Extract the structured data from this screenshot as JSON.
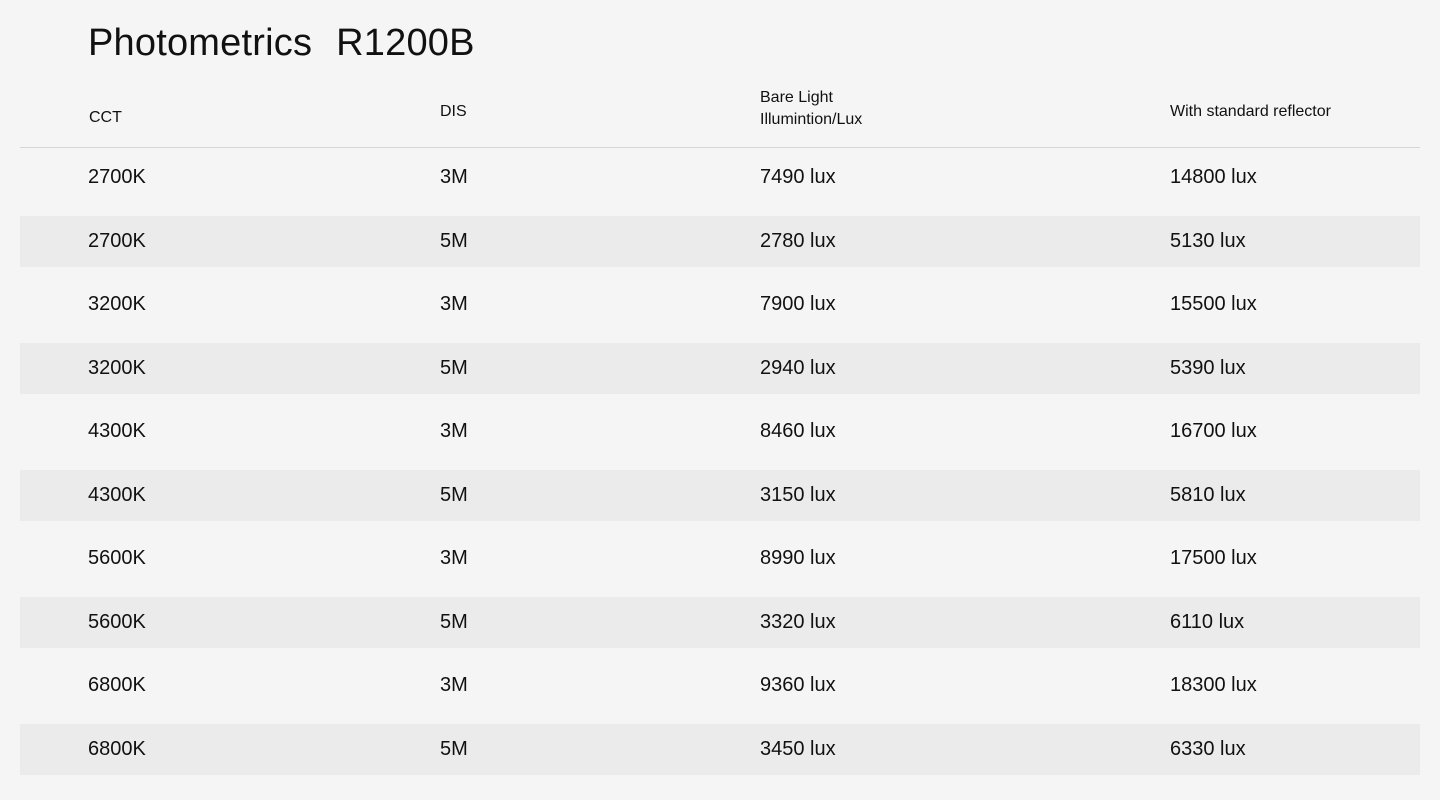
{
  "title": {
    "main": "Photometrics",
    "model": "R1200B"
  },
  "headers": [
    {
      "line1": "CCT",
      "line2": ""
    },
    {
      "line1": "DIS",
      "line2": ""
    },
    {
      "line1": "Bare Light",
      "line2": "Illumintion/Lux"
    },
    {
      "line1": "With standard reflector",
      "line2": ""
    }
  ],
  "rows": [
    [
      "2700K",
      "3M",
      "7490 lux",
      "14800 lux"
    ],
    [
      "2700K",
      "5M",
      "2780 lux",
      "5130 lux"
    ],
    [
      "3200K",
      "3M",
      "7900 lux",
      "15500 lux"
    ],
    [
      "3200K",
      "5M",
      "2940 lux",
      "5390 lux"
    ],
    [
      "4300K",
      "3M",
      "8460 lux",
      "16700 lux"
    ],
    [
      "4300K",
      "5M",
      "3150 lux",
      "5810 lux"
    ],
    [
      "5600K",
      "3M",
      "8990 lux",
      "17500 lux"
    ],
    [
      "5600K",
      "5M",
      "3320 lux",
      "6110 lux"
    ],
    [
      "6800K",
      "3M",
      "9360 lux",
      "18300 lux"
    ],
    [
      "6800K",
      "5M",
      "3450 lux",
      "6330 lux"
    ]
  ]
}
